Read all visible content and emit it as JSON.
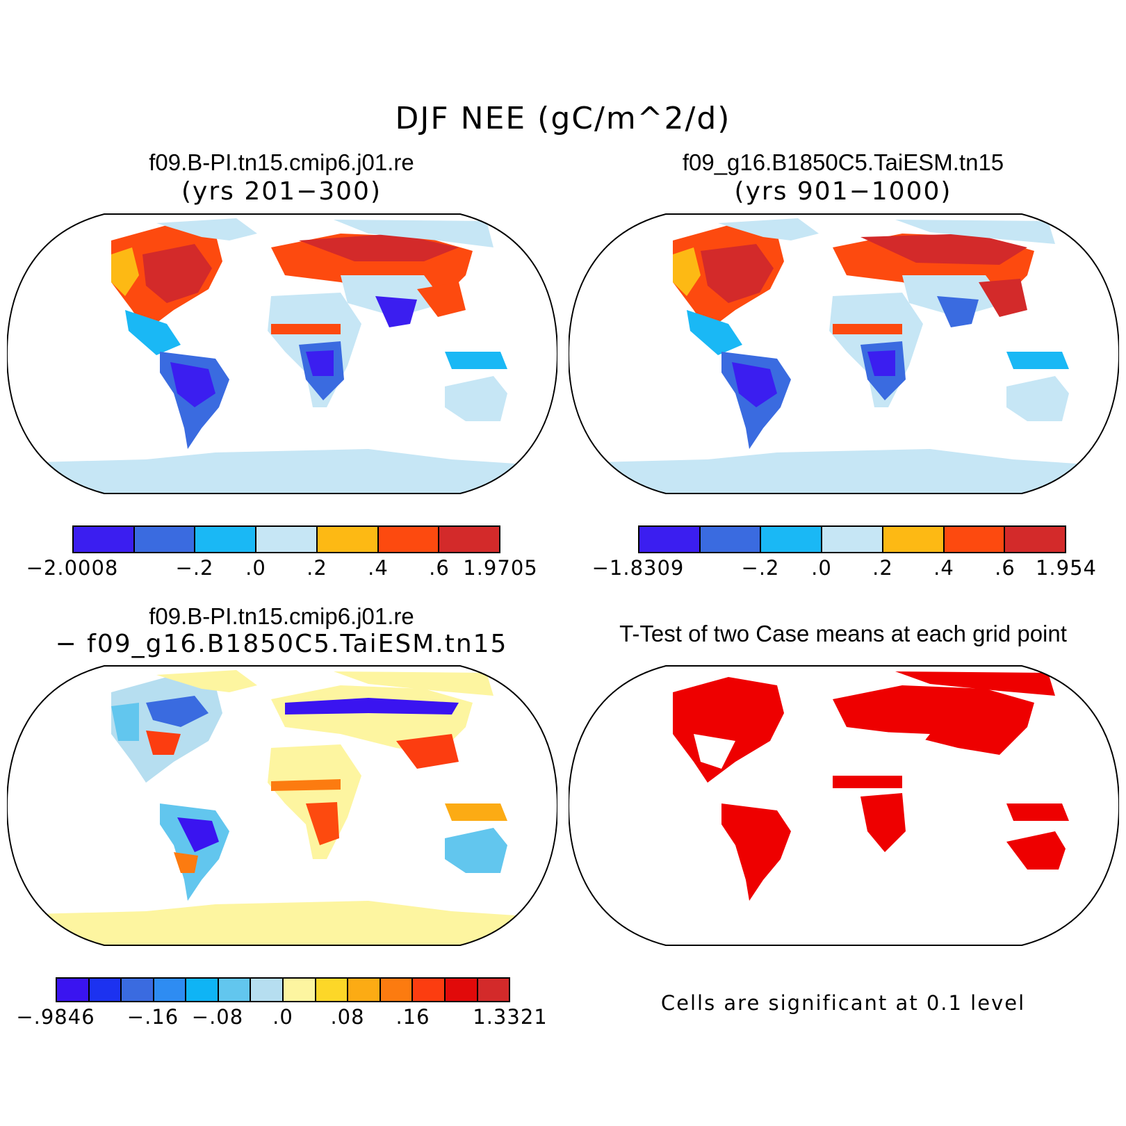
{
  "figure": {
    "title": "DJF NEE (gC/m^2/d)"
  },
  "panels": [
    {
      "title": "f09.B-PI.tn15.cmip6.j01.re",
      "subtitle": "(yrs 201−300)",
      "colorbar": {
        "colors": [
          "#3b1ef0",
          "#3a6be0",
          "#1ab8f5",
          "#c6e6f5",
          "#fdb914",
          "#fd4a0f",
          "#d32a2a"
        ],
        "labels": [
          "−2.0008",
          "−.2",
          ".0",
          ".2",
          ".4",
          ".6",
          "1.9705"
        ]
      }
    },
    {
      "title": "f09_g16.B1850C5.TaiESM.tn15",
      "subtitle": "(yrs 901−1000)",
      "colorbar": {
        "colors": [
          "#3b1ef0",
          "#3a6be0",
          "#1ab8f5",
          "#c6e6f5",
          "#fdb914",
          "#fd4a0f",
          "#d32a2a"
        ],
        "labels": [
          "−1.8309",
          "−.2",
          ".0",
          ".2",
          ".4",
          ".6",
          "1.954"
        ]
      }
    },
    {
      "title": "f09.B-PI.tn15.cmip6.j01.re",
      "subtitle": "− f09_g16.B1850C5.TaiESM.tn15",
      "colorbar": {
        "colors": [
          "#3a14f0",
          "#1c32f0",
          "#3a6be0",
          "#2e8cf2",
          "#0fb4f5",
          "#62c6ee",
          "#b6def0",
          "#fdf5a0",
          "#fdd728",
          "#fcab14",
          "#fc7b10",
          "#fc3d10",
          "#e10a0a",
          "#d32a2a"
        ],
        "labels": [
          "−.9846",
          "−.16",
          "−.08",
          ".0",
          ".08",
          ".16",
          "1.3321"
        ]
      }
    },
    {
      "title": "T-Test of two Case means at each grid point",
      "note": "Cells are significant at 0.1 level"
    }
  ]
}
